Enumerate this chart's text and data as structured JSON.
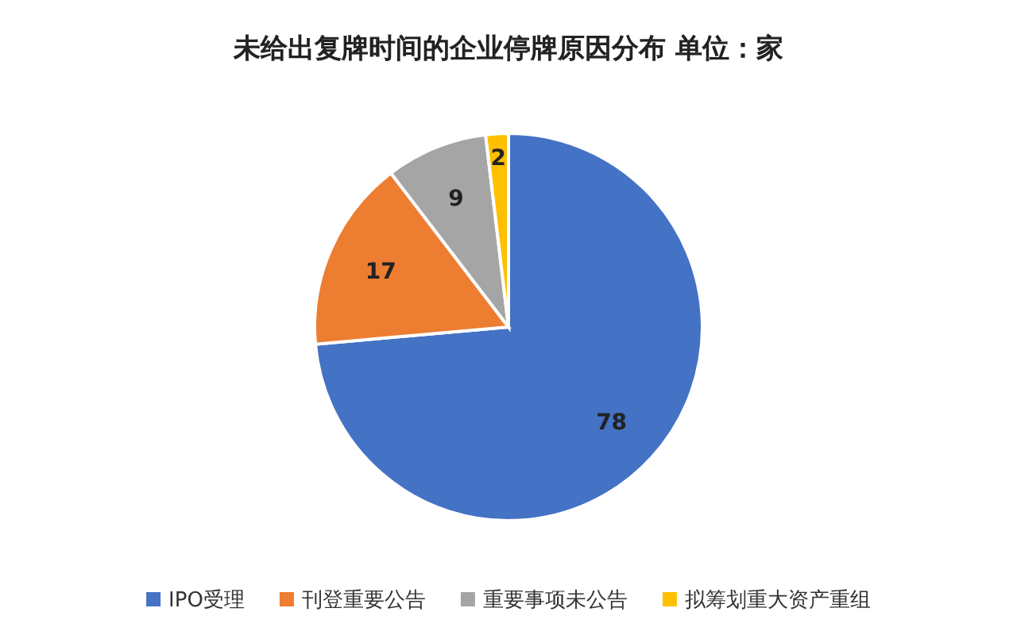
{
  "chart_data": {
    "type": "pie",
    "title": "未给出复牌时间的企业停牌原因分布  单位：家",
    "categories": [
      "IPO受理",
      "刊登重要公告",
      "重要事项未公告",
      "拟筹划重大资产重组"
    ],
    "values": [
      78,
      17,
      9,
      2
    ],
    "colors": [
      "#4472c4",
      "#ed7d31",
      "#a5a5a5",
      "#ffc000"
    ],
    "data_labels": true,
    "legend": "bottom"
  }
}
